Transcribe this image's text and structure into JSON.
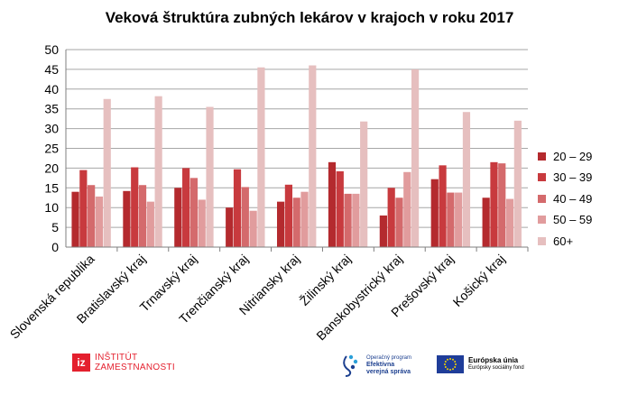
{
  "chart_data": {
    "type": "bar",
    "title": "Veková štruktúra zubných lekárov v krajoch v roku 2017",
    "categories": [
      "Slovenská republika",
      "Bratislavský kraj",
      "Trnavský kraj",
      "Trenčianský kraj",
      "Nitriansky kraj",
      "Žilinský kraj",
      "Banskobystrický kraj",
      "Prešovský kraj",
      "Košický kraj"
    ],
    "series": [
      {
        "name": "20 – 29",
        "color": "#b42a2e",
        "values": [
          14,
          14.2,
          15,
          10,
          11.5,
          21.5,
          8,
          17.2,
          12.5
        ]
      },
      {
        "name": "30 – 39",
        "color": "#c83a3e",
        "values": [
          19.5,
          20.2,
          20,
          19.7,
          15.8,
          19.2,
          15,
          20.7,
          21.5
        ]
      },
      {
        "name": "40 – 49",
        "color": "#d46a6c",
        "values": [
          15.7,
          15.7,
          17.5,
          15.2,
          12.5,
          13.5,
          12.5,
          13.8,
          21.2
        ]
      },
      {
        "name": "50 – 59",
        "color": "#e19c9d",
        "values": [
          12.8,
          11.5,
          12,
          9.2,
          14,
          13.5,
          19,
          13.8,
          12.2
        ]
      },
      {
        "name": "60+",
        "color": "#e6bfbf",
        "values": [
          37.5,
          38.2,
          35.5,
          45.5,
          46,
          31.8,
          45,
          34.2,
          32
        ]
      }
    ],
    "ylim": [
      0,
      50
    ],
    "yticks": [
      "0",
      "5",
      "10",
      "15",
      "20",
      "25",
      "30",
      "35",
      "40",
      "45",
      "50"
    ],
    "grid": true,
    "legend_position": "right"
  },
  "logos": {
    "iz_mark": "iz",
    "iz_line1": "INŠTITÚT",
    "iz_line2": "ZAMESTNANOSTI",
    "op_line1": "Operačný program",
    "op_line2": "Efektívna",
    "op_line3": "verejná správa",
    "eu_title": "Európska únia",
    "eu_sub": "Európsky sociálny fond"
  }
}
